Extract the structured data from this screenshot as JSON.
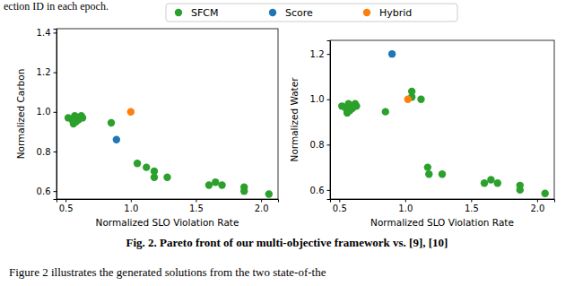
{
  "chart_data": [
    {
      "type": "scatter",
      "x_label": "Normalized SLO Violation Rate",
      "y_label": "Normalized Carbon",
      "xlim": [
        0.43,
        2.13
      ],
      "xticks": [
        0.5,
        {
          "value": 1,
          "label": "1.0"
        },
        1.5,
        {
          "value": 2,
          "label": "2.0"
        }
      ],
      "ylim": [
        0.56,
        1.42
      ],
      "yticks": [
        0.6,
        0.8,
        {
          "value": 1,
          "label": "1.0"
        },
        1.2,
        1.4
      ],
      "legend": "top",
      "series": [
        {
          "name": "SFCM",
          "color": "#2ca02c",
          "marker": "circle",
          "x": [
            0.52,
            0.55,
            0.57,
            0.58,
            0.6,
            0.62,
            0.63,
            0.56,
            0.85,
            1.05,
            1.12,
            1.18,
            1.18,
            1.28,
            1.6,
            1.65,
            1.7,
            1.87,
            1.87,
            2.06
          ],
          "values": [
            0.97,
            0.96,
            0.98,
            0.95,
            0.96,
            0.98,
            0.97,
            0.94,
            0.945,
            0.74,
            0.72,
            0.7,
            0.67,
            0.67,
            0.63,
            0.645,
            0.63,
            0.62,
            0.6,
            0.585
          ]
        },
        {
          "name": "Score",
          "color": "#1f77b4",
          "marker": "circle",
          "x": [
            0.89
          ],
          "values": [
            0.86
          ]
        },
        {
          "name": "Hybrid",
          "color": "#ff7f0e",
          "marker": "circle",
          "x": [
            1.0
          ],
          "values": [
            1.0
          ]
        }
      ]
    },
    {
      "type": "scatter",
      "x_label": "Normalized SLO Violation Rate",
      "y_label": "Normalized Water",
      "xlim": [
        0.43,
        2.13
      ],
      "xticks": [
        0.5,
        {
          "value": 1,
          "label": "1.0"
        },
        1.5,
        {
          "value": 2,
          "label": "2.0"
        }
      ],
      "ylim": [
        0.56,
        1.26
      ],
      "yticks": [
        0.6,
        0.8,
        {
          "value": 1,
          "label": "1.0"
        },
        1.2
      ],
      "series": [
        {
          "name": "SFCM",
          "color": "#2ca02c",
          "marker": "circle",
          "x": [
            0.52,
            0.55,
            0.57,
            0.58,
            0.6,
            0.62,
            0.63,
            0.56,
            0.85,
            1.05,
            1.05,
            1.12,
            1.17,
            1.18,
            1.28,
            1.6,
            1.65,
            1.7,
            1.87,
            1.87,
            2.06
          ],
          "values": [
            0.97,
            0.96,
            0.98,
            0.95,
            0.96,
            0.98,
            0.97,
            0.94,
            0.945,
            1.035,
            1.01,
            1.0,
            0.7,
            0.67,
            0.67,
            0.63,
            0.645,
            0.63,
            0.62,
            0.6,
            0.585
          ]
        },
        {
          "name": "Score",
          "color": "#1f77b4",
          "marker": "circle",
          "x": [
            0.9
          ],
          "values": [
            1.2
          ]
        },
        {
          "name": "Hybrid",
          "color": "#ff7f0e",
          "marker": "circle",
          "x": [
            1.02
          ],
          "values": [
            1.0
          ]
        }
      ]
    }
  ],
  "caption": "Fig. 2. Pareto front of our multi-objective framework vs. [9], [10]",
  "annotations": [
    "ection ID in each epoch.",
    "Figure 2 illustrates the generated solutions from the two state-of-the"
  ]
}
